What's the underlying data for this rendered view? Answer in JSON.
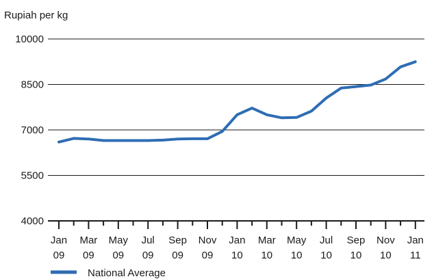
{
  "chart_data": {
    "type": "line",
    "title": "",
    "ylabel": "Rupiah per kg",
    "xlabel": "",
    "ylim": [
      4000,
      10000
    ],
    "yticks": [
      4000,
      5500,
      7000,
      8500,
      10000
    ],
    "y_tick_labels": [
      "4000",
      "5500",
      "7000",
      "8500",
      "10000"
    ],
    "grid": "horizontal",
    "legend_position": "bottom-left",
    "x": [
      "Jan 09",
      "Feb 09",
      "Mar 09",
      "Apr 09",
      "May 09",
      "Jun 09",
      "Jul 09",
      "Aug 09",
      "Sep 09",
      "Oct 09",
      "Nov 09",
      "Dec 09",
      "Jan 10",
      "Feb 10",
      "Mar 10",
      "Apr 10",
      "May 10",
      "Jun 10",
      "Jul 10",
      "Aug 10",
      "Sep 10",
      "Oct 10",
      "Nov 10",
      "Dec 10",
      "Jan 11"
    ],
    "x_tick_labels": [
      [
        "Jan",
        "09"
      ],
      [
        "Mar",
        "09"
      ],
      [
        "May",
        "09"
      ],
      [
        "Jul",
        "09"
      ],
      [
        "Sep",
        "09"
      ],
      [
        "Nov",
        "09"
      ],
      [
        "Jan",
        "10"
      ],
      [
        "Mar",
        "10"
      ],
      [
        "May",
        "10"
      ],
      [
        "Jul",
        "10"
      ],
      [
        "Sep",
        "10"
      ],
      [
        "Nov",
        "10"
      ],
      [
        "Jan",
        "11"
      ]
    ],
    "series": [
      {
        "name": "National Average",
        "color": "#2e6db4",
        "values": [
          6600,
          6720,
          6700,
          6650,
          6650,
          6650,
          6650,
          6665,
          6700,
          6710,
          6710,
          6950,
          7500,
          7720,
          7500,
          7400,
          7410,
          7620,
          8050,
          8380,
          8430,
          8480,
          8680,
          9080,
          9250
        ]
      }
    ]
  }
}
